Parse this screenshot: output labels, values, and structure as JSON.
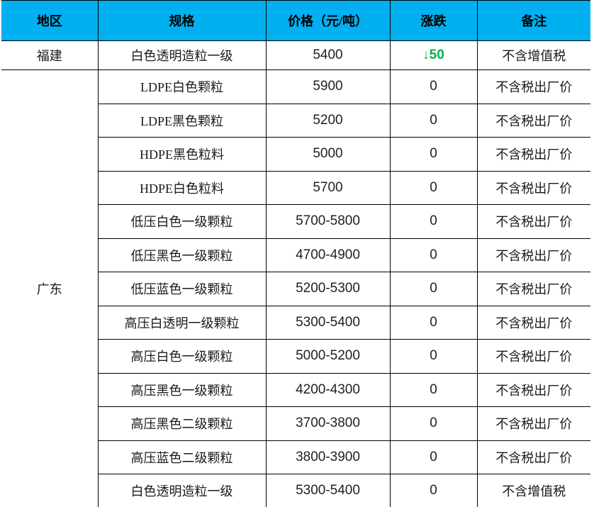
{
  "table": {
    "headers": [
      "地区",
      "规格",
      "价格（元/吨）",
      "涨跌",
      "备注"
    ],
    "regions": [
      {
        "name": "福建",
        "rows": [
          {
            "spec": "白色透明造粒一级",
            "price": "5400",
            "change": "↓50",
            "change_type": "down",
            "note": "不含增值税"
          }
        ]
      },
      {
        "name": "广东",
        "rows": [
          {
            "spec": "LDPE白色颗粒",
            "price": "5900",
            "change": "0",
            "change_type": "flat",
            "note": "不含税出厂价"
          },
          {
            "spec": "LDPE黑色颗粒",
            "price": "5200",
            "change": "0",
            "change_type": "flat",
            "note": "不含税出厂价"
          },
          {
            "spec": "HDPE黑色粒料",
            "price": "5000",
            "change": "0",
            "change_type": "flat",
            "note": "不含税出厂价"
          },
          {
            "spec": "HDPE白色粒料",
            "price": "5700",
            "change": "0",
            "change_type": "flat",
            "note": "不含税出厂价"
          },
          {
            "spec": "低压白色一级颗粒",
            "price": "5700-5800",
            "change": "0",
            "change_type": "flat",
            "note": "不含税出厂价"
          },
          {
            "spec": "低压黑色一级颗粒",
            "price": "4700-4900",
            "change": "0",
            "change_type": "flat",
            "note": "不含税出厂价"
          },
          {
            "spec": "低压蓝色一级颗粒",
            "price": "5200-5300",
            "change": "0",
            "change_type": "flat",
            "note": "不含税出厂价"
          },
          {
            "spec": "高压白透明一级颗粒",
            "price": "5300-5400",
            "change": "0",
            "change_type": "flat",
            "note": "不含税出厂价"
          },
          {
            "spec": "高压白色一级颗粒",
            "price": "5000-5200",
            "change": "0",
            "change_type": "flat",
            "note": "不含税出厂价"
          },
          {
            "spec": "高压黑色一级颗粒",
            "price": "4200-4300",
            "change": "0",
            "change_type": "flat",
            "note": "不含税出厂价"
          },
          {
            "spec": "高压黑色二级颗粒",
            "price": "3700-3800",
            "change": "0",
            "change_type": "flat",
            "note": "不含税出厂价"
          },
          {
            "spec": "高压蓝色二级颗粒",
            "price": "3800-3900",
            "change": "0",
            "change_type": "flat",
            "note": "不含税出厂价"
          },
          {
            "spec": "白色透明造粒一级",
            "price": "5300-5400",
            "change": "0",
            "change_type": "flat",
            "note": "不含增值税"
          }
        ]
      }
    ],
    "colors": {
      "header_bg": "#00b0f0",
      "change_down": "#00b050",
      "border": "#000000"
    }
  }
}
